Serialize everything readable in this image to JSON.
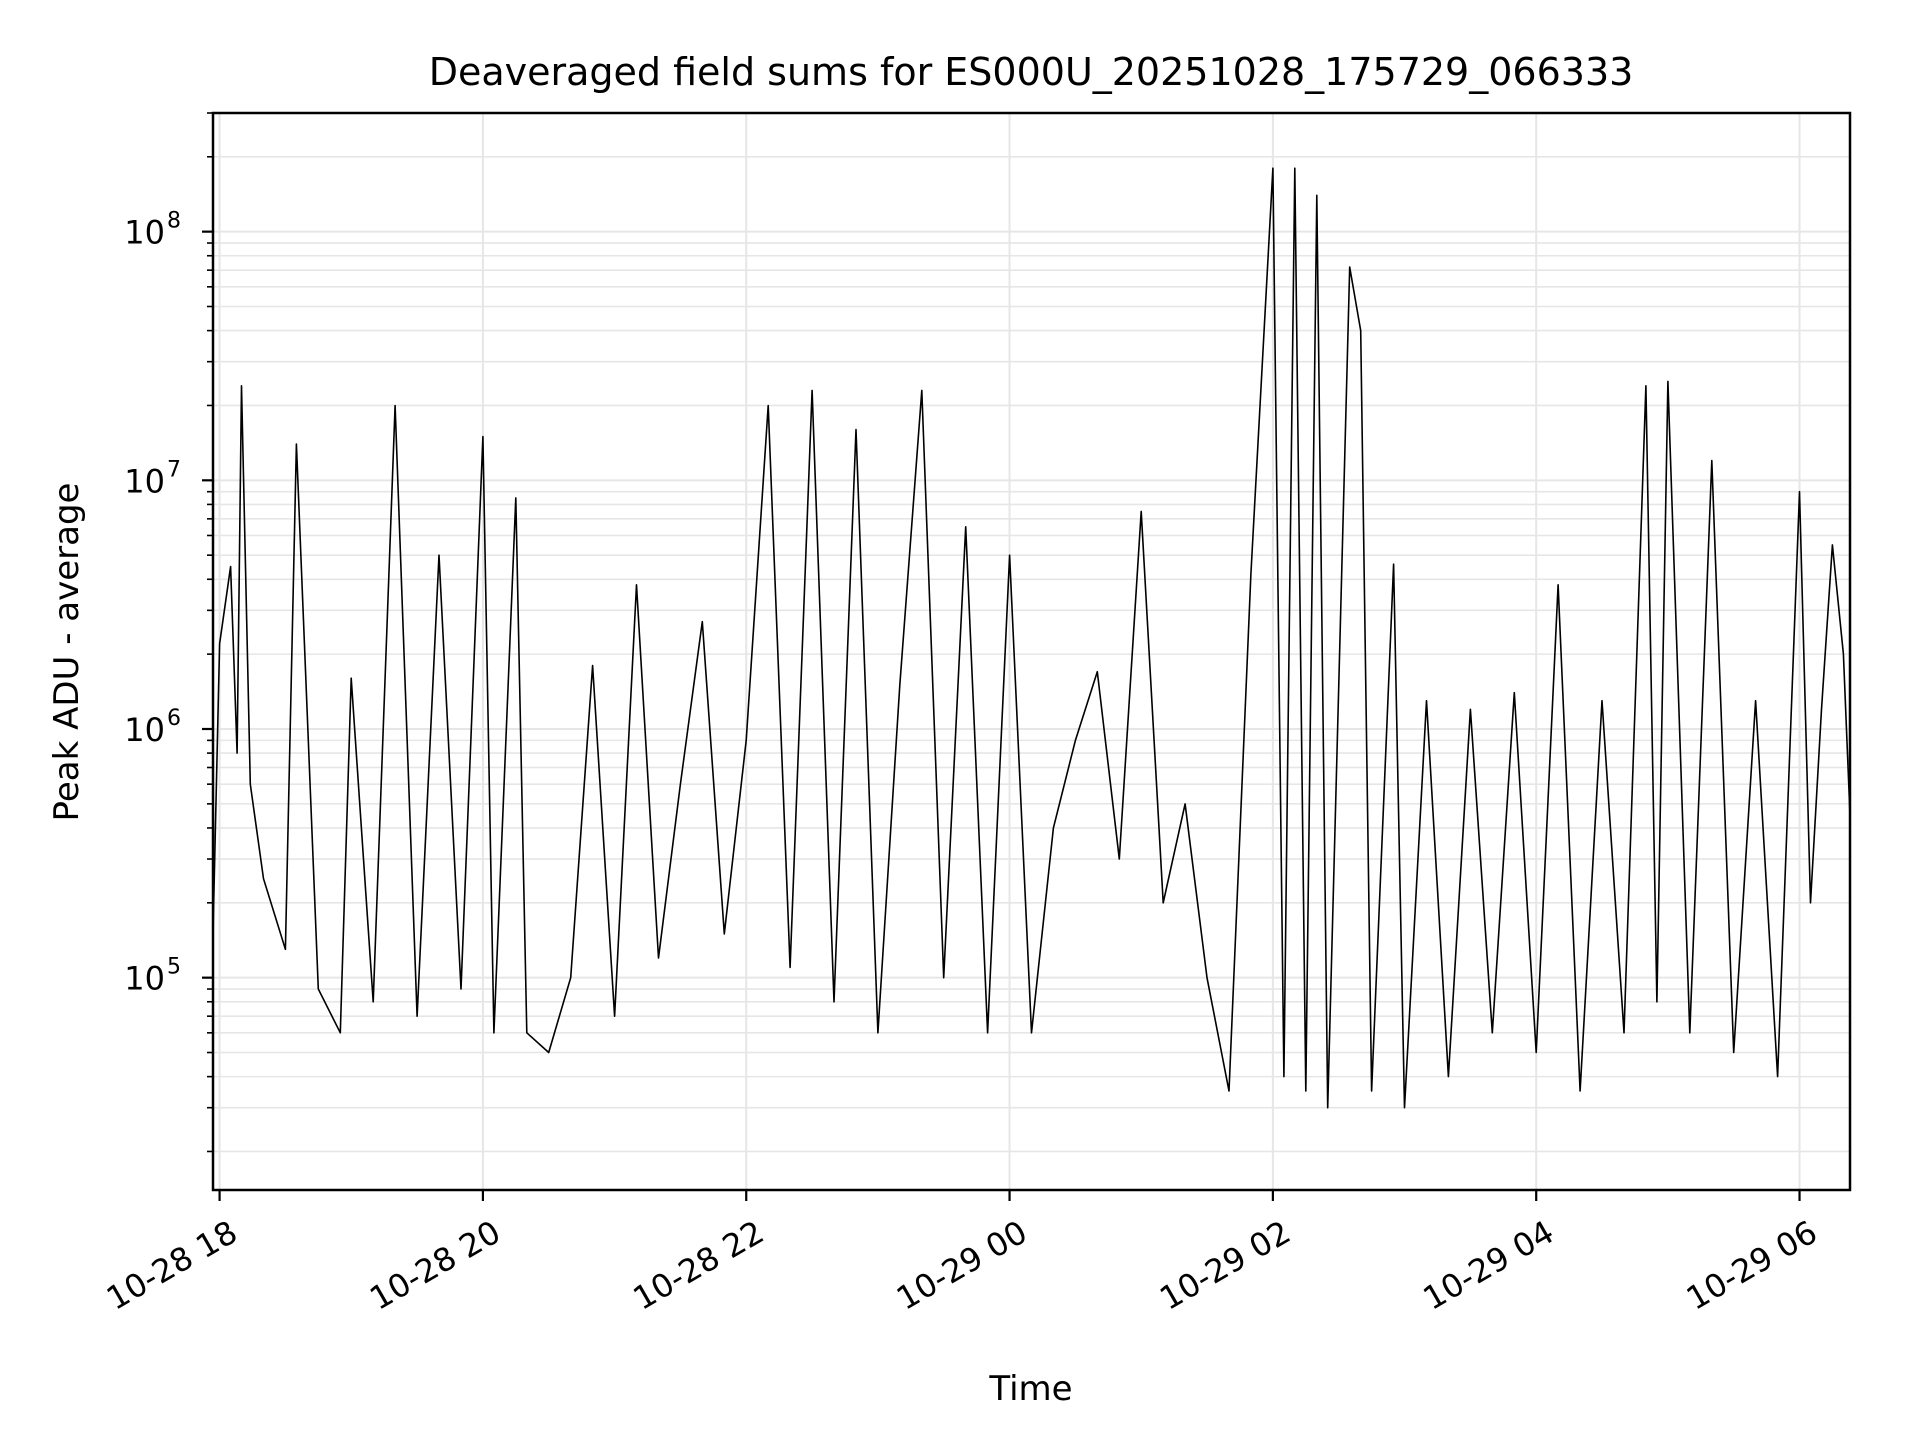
{
  "chart_data": {
    "type": "line",
    "title": "Deaveraged field sums for ES000U_20251028_175729_066333",
    "xlabel": "Time",
    "ylabel": "Peak ADU - average",
    "y_scale": "log",
    "ylim": [
      14000,
      300000000
    ],
    "xlim": [
      "2025-10-28 17:57",
      "2025-10-29 06:23"
    ],
    "grid": true,
    "line_color": "#000000",
    "grid_color": "#e6e6e6",
    "x_ticks": [
      {
        "label": "10-28 18",
        "value": "2025-10-28 18:00"
      },
      {
        "label": "10-28 20",
        "value": "2025-10-28 20:00"
      },
      {
        "label": "10-28 22",
        "value": "2025-10-28 22:00"
      },
      {
        "label": "10-29 00",
        "value": "2025-10-29 00:00"
      },
      {
        "label": "10-29 02",
        "value": "2025-10-29 02:00"
      },
      {
        "label": "10-29 04",
        "value": "2025-10-29 04:00"
      },
      {
        "label": "10-29 06",
        "value": "2025-10-29 06:00"
      }
    ],
    "y_ticks": [
      {
        "base": "10",
        "exp": "5",
        "value": 100000
      },
      {
        "base": "10",
        "exp": "6",
        "value": 1000000
      },
      {
        "base": "10",
        "exp": "7",
        "value": 10000000
      },
      {
        "base": "10",
        "exp": "8",
        "value": 100000000
      }
    ],
    "series": [
      {
        "points": [
          [
            "2025-10-28 17:57",
            150000
          ],
          [
            "2025-10-28 18:00",
            2200000
          ],
          [
            "2025-10-28 18:05",
            4500000
          ],
          [
            "2025-10-28 18:08",
            800000
          ],
          [
            "2025-10-28 18:10",
            24000000
          ],
          [
            "2025-10-28 18:14",
            600000
          ],
          [
            "2025-10-28 18:20",
            250000
          ],
          [
            "2025-10-28 18:30",
            130000
          ],
          [
            "2025-10-28 18:35",
            14000000
          ],
          [
            "2025-10-28 18:45",
            90000
          ],
          [
            "2025-10-28 18:55",
            60000
          ],
          [
            "2025-10-28 19:00",
            1600000
          ],
          [
            "2025-10-28 19:10",
            80000
          ],
          [
            "2025-10-28 19:20",
            20000000
          ],
          [
            "2025-10-28 19:30",
            70000
          ],
          [
            "2025-10-28 19:40",
            5000000
          ],
          [
            "2025-10-28 19:50",
            90000
          ],
          [
            "2025-10-28 20:00",
            15000000
          ],
          [
            "2025-10-28 20:05",
            60000
          ],
          [
            "2025-10-28 20:15",
            8500000
          ],
          [
            "2025-10-28 20:20",
            60000
          ],
          [
            "2025-10-28 20:30",
            50000
          ],
          [
            "2025-10-28 20:40",
            100000
          ],
          [
            "2025-10-28 20:50",
            1800000
          ],
          [
            "2025-10-28 21:00",
            70000
          ],
          [
            "2025-10-28 21:10",
            3800000
          ],
          [
            "2025-10-28 21:20",
            120000
          ],
          [
            "2025-10-28 21:30",
            600000
          ],
          [
            "2025-10-28 21:40",
            2700000
          ],
          [
            "2025-10-28 21:50",
            150000
          ],
          [
            "2025-10-28 22:00",
            900000
          ],
          [
            "2025-10-28 22:10",
            20000000
          ],
          [
            "2025-10-28 22:20",
            110000
          ],
          [
            "2025-10-28 22:30",
            23000000
          ],
          [
            "2025-10-28 22:40",
            80000
          ],
          [
            "2025-10-28 22:50",
            16000000
          ],
          [
            "2025-10-28 23:00",
            60000
          ],
          [
            "2025-10-28 23:10",
            1500000
          ],
          [
            "2025-10-28 23:20",
            23000000
          ],
          [
            "2025-10-28 23:30",
            100000
          ],
          [
            "2025-10-28 23:40",
            6500000
          ],
          [
            "2025-10-28 23:50",
            60000
          ],
          [
            "2025-10-29 00:00",
            5000000
          ],
          [
            "2025-10-29 00:10",
            60000
          ],
          [
            "2025-10-29 00:20",
            400000
          ],
          [
            "2025-10-29 00:30",
            900000
          ],
          [
            "2025-10-29 00:40",
            1700000
          ],
          [
            "2025-10-29 00:50",
            300000
          ],
          [
            "2025-10-29 01:00",
            7500000
          ],
          [
            "2025-10-29 01:10",
            200000
          ],
          [
            "2025-10-29 01:20",
            500000
          ],
          [
            "2025-10-29 01:30",
            100000
          ],
          [
            "2025-10-29 01:40",
            35000
          ],
          [
            "2025-10-29 01:50",
            4200000
          ],
          [
            "2025-10-29 02:00",
            180000000
          ],
          [
            "2025-10-29 02:05",
            40000
          ],
          [
            "2025-10-29 02:10",
            180000000
          ],
          [
            "2025-10-29 02:15",
            35000
          ],
          [
            "2025-10-29 02:20",
            140000000
          ],
          [
            "2025-10-29 02:25",
            30000
          ],
          [
            "2025-10-29 02:35",
            72000000
          ],
          [
            "2025-10-29 02:40",
            40000000
          ],
          [
            "2025-10-29 02:45",
            35000
          ],
          [
            "2025-10-29 02:55",
            4600000
          ],
          [
            "2025-10-29 03:00",
            30000
          ],
          [
            "2025-10-29 03:10",
            1300000
          ],
          [
            "2025-10-29 03:20",
            40000
          ],
          [
            "2025-10-29 03:30",
            1200000
          ],
          [
            "2025-10-29 03:40",
            60000
          ],
          [
            "2025-10-29 03:50",
            1400000
          ],
          [
            "2025-10-29 04:00",
            50000
          ],
          [
            "2025-10-29 04:10",
            3800000
          ],
          [
            "2025-10-29 04:20",
            35000
          ],
          [
            "2025-10-29 04:30",
            1300000
          ],
          [
            "2025-10-29 04:40",
            60000
          ],
          [
            "2025-10-29 04:50",
            24000000
          ],
          [
            "2025-10-29 04:55",
            80000
          ],
          [
            "2025-10-29 05:00",
            25000000
          ],
          [
            "2025-10-29 05:10",
            60000
          ],
          [
            "2025-10-29 05:20",
            12000000
          ],
          [
            "2025-10-29 05:30",
            50000
          ],
          [
            "2025-10-29 05:40",
            1300000
          ],
          [
            "2025-10-29 05:50",
            40000
          ],
          [
            "2025-10-29 06:00",
            9000000
          ],
          [
            "2025-10-29 06:05",
            200000
          ],
          [
            "2025-10-29 06:10",
            1200000
          ],
          [
            "2025-10-29 06:15",
            5500000
          ],
          [
            "2025-10-29 06:20",
            2000000
          ],
          [
            "2025-10-29 06:23",
            450000
          ]
        ]
      }
    ]
  }
}
